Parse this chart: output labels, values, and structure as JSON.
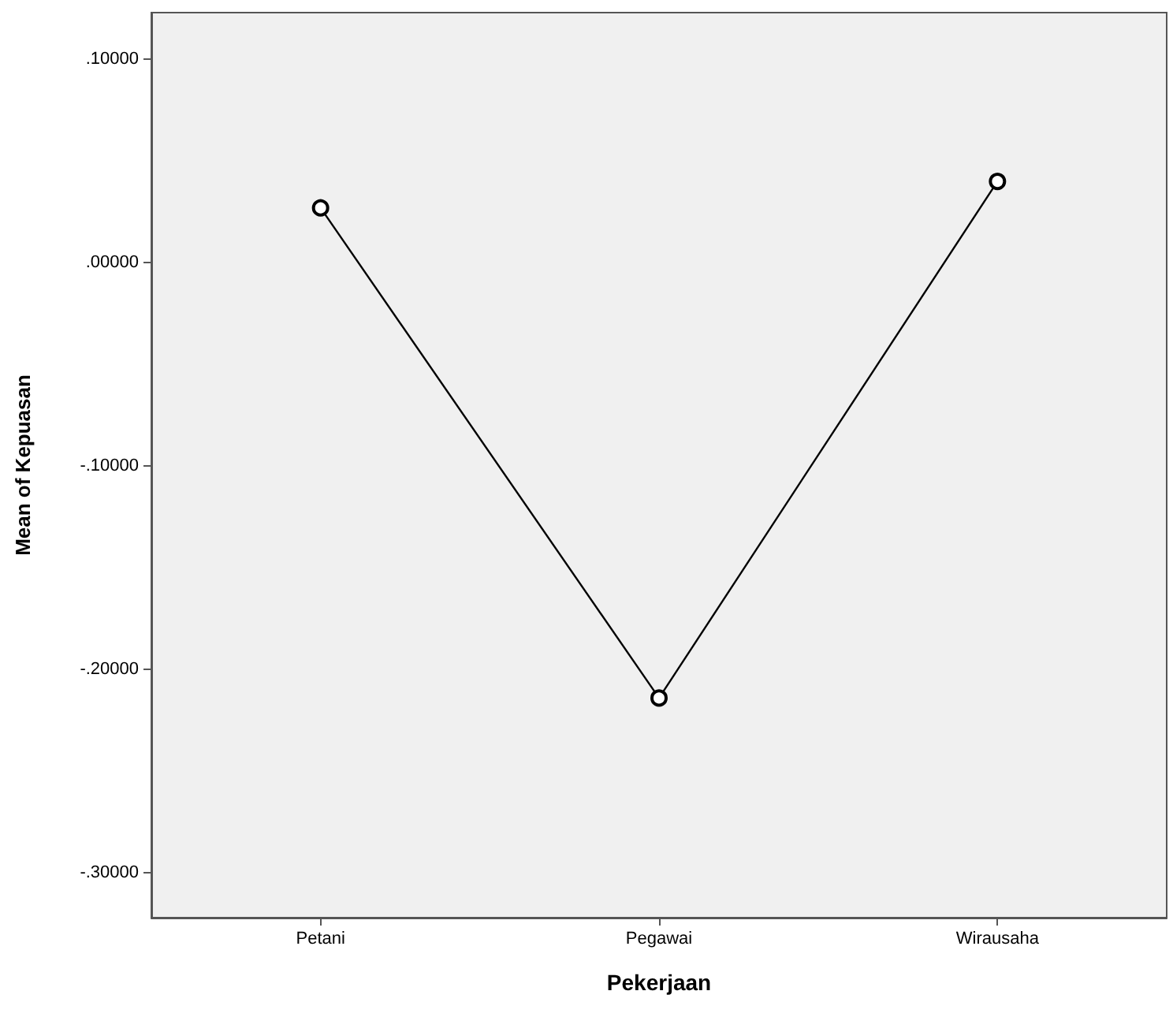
{
  "chart_data": {
    "type": "line",
    "xlabel": "Pekerjaan",
    "ylabel": "Mean of Kepuasan",
    "categories": [
      "Petani",
      "Pegawai",
      "Wirausaha"
    ],
    "series": [
      {
        "color": "#000000",
        "values": [
          0.027,
          -0.214,
          0.04
        ]
      }
    ],
    "ylim": [
      -0.322,
      0.123
    ],
    "yticks": [
      {
        "value": -0.3,
        "label": "-.30000"
      },
      {
        "value": -0.2,
        "label": "-.20000"
      },
      {
        "value": -0.1,
        "label": "-.10000"
      },
      {
        "value": 0,
        "label": ".00000"
      },
      {
        "value": 0.1,
        "label": ".10000"
      }
    ],
    "marker": "circle",
    "line_style": "solid",
    "grid": false
  }
}
